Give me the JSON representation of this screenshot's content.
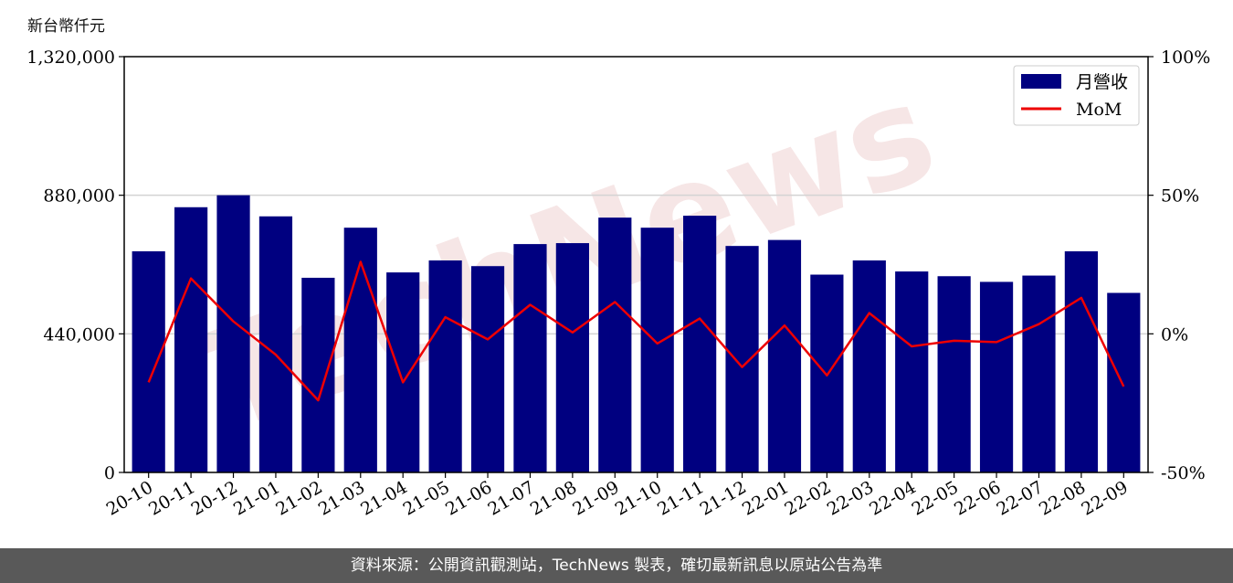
{
  "unit_label": "新台幣仟元",
  "footer_text": "資料來源：公開資訊觀測站，TechNews 製表，確切最新訊息以原站公告為準",
  "colors": {
    "bar": "#000080",
    "line": "#ee0000",
    "grid": "#d3d3d3",
    "watermark": "#f4dede"
  },
  "chart_data": {
    "type": "bar",
    "categories": [
      "20-10",
      "20-11",
      "20-12",
      "21-01",
      "21-02",
      "21-03",
      "21-04",
      "21-05",
      "21-06",
      "21-07",
      "21-08",
      "21-09",
      "21-10",
      "21-11",
      "21-12",
      "22-01",
      "22-02",
      "22-03",
      "22-04",
      "22-05",
      "22-06",
      "22-07",
      "22-08",
      "22-09"
    ],
    "series": [
      {
        "name": "月營收",
        "type": "bar",
        "axis": "left",
        "values": [
          702000,
          842000,
          880000,
          813000,
          618000,
          777000,
          635000,
          673000,
          655000,
          725000,
          728000,
          809000,
          777000,
          815000,
          719000,
          738000,
          628000,
          673000,
          638000,
          623000,
          605000,
          625000,
          702000,
          570000
        ]
      },
      {
        "name": "MoM",
        "type": "line",
        "axis": "right",
        "values": [
          -17.5,
          20.0,
          4.5,
          -7.5,
          -24.0,
          26.0,
          -17.5,
          6.0,
          -2.0,
          10.5,
          0.5,
          11.5,
          -3.5,
          5.5,
          -12.0,
          3.0,
          -15.0,
          7.5,
          -4.5,
          -2.5,
          -3.0,
          3.5,
          13.0,
          -19.0
        ]
      }
    ],
    "ylim_left": [
      0,
      1320000
    ],
    "yticks_left": [
      "0",
      "440,000",
      "880,000",
      "1,320,000"
    ],
    "ylim_right": [
      -50,
      100
    ],
    "yticks_right": [
      "-50%",
      "0%",
      "50%",
      "100%"
    ],
    "grid": "horizontal",
    "legend_position": "top-right",
    "watermark": "TechNews"
  }
}
